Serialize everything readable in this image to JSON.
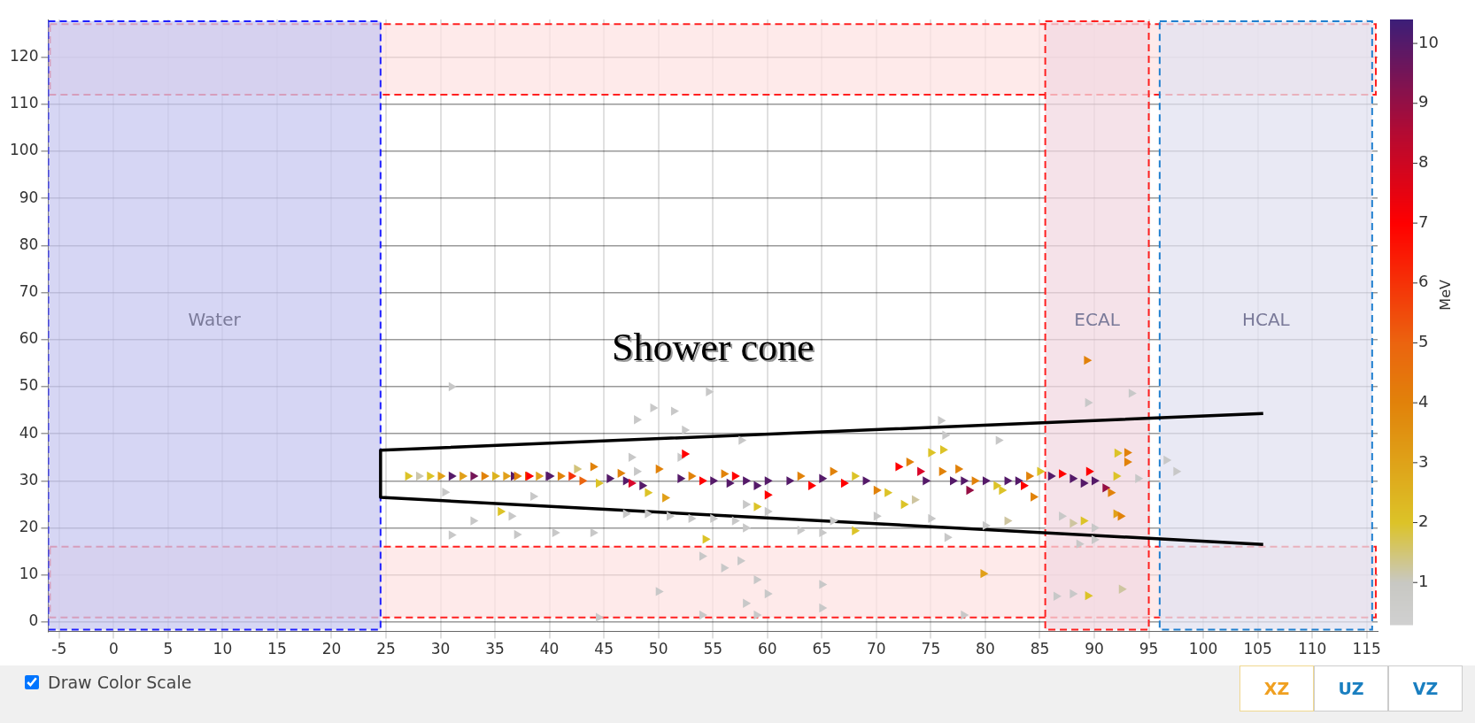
{
  "chart_data": {
    "type": "scatter",
    "clabel": "MeV",
    "clim": [
      0.3,
      10.4
    ],
    "cticks": [
      1,
      2,
      3,
      4,
      5,
      6,
      7,
      8,
      9,
      10
    ],
    "xlim": [
      -6,
      116
    ],
    "xticks": [
      -5,
      0,
      5,
      10,
      15,
      20,
      25,
      30,
      35,
      40,
      45,
      50,
      55,
      60,
      65,
      70,
      75,
      80,
      85,
      90,
      95,
      100,
      105,
      110,
      115
    ],
    "ylim": [
      -2,
      128
    ],
    "yticks": [
      0,
      10,
      20,
      30,
      40,
      50,
      60,
      70,
      80,
      90,
      100,
      110,
      120
    ],
    "grid": true,
    "legend": false,
    "bands": [
      {
        "axis": "y",
        "from": 112,
        "to": 127,
        "color": "#fde3e3"
      },
      {
        "axis": "y",
        "from": 1,
        "to": 16,
        "color": "#fde3e3"
      },
      {
        "axis": "x",
        "from": -6,
        "to": 24.5,
        "label": "Water",
        "color": "#c8c8f0"
      },
      {
        "axis": "x",
        "from": 85.5,
        "to": 95,
        "label": "ECAL",
        "color": "#f2d8e2"
      },
      {
        "axis": "x",
        "from": 96,
        "to": 115.5,
        "label": "HCAL",
        "color": "#e2e2f0"
      }
    ],
    "series": [
      {
        "marker": "triangle",
        "x": [
          27,
          28,
          29,
          30,
          31,
          32,
          33,
          34,
          35,
          36,
          36.7,
          37,
          38,
          38.1,
          39,
          39.9,
          40,
          41,
          42,
          42.5,
          43,
          44,
          44.5,
          45.5,
          46.5,
          47,
          47.5,
          48,
          48.5,
          49,
          50,
          50.6,
          52.4,
          52,
          53,
          54,
          55,
          56,
          56.5,
          57,
          58,
          59,
          60,
          58,
          59,
          60,
          62,
          63,
          64,
          65,
          66,
          67,
          68,
          69,
          70,
          71,
          72,
          73,
          74,
          74.5,
          75,
          76.1,
          76,
          77,
          77.5,
          78,
          78.5,
          79,
          80,
          81,
          81.5,
          82,
          83,
          83.5,
          84,
          84.4,
          85,
          86,
          87,
          88,
          89,
          89.5,
          90,
          91,
          91.5,
          92,
          93,
          93,
          94,
          92.1,
          89.3,
          93.4,
          89.4
        ],
        "values": [
          31,
          31,
          31,
          31,
          31,
          31,
          31,
          31,
          31,
          31,
          31,
          31,
          31,
          31,
          31,
          31,
          31,
          31,
          31,
          32.5,
          30,
          33,
          29.5,
          30.5,
          31.6,
          30,
          29.5,
          32,
          29,
          27.5,
          32.5,
          26.4,
          35.7,
          30.5,
          31,
          30,
          30,
          31.5,
          29.5,
          31,
          30,
          29,
          30,
          25,
          24.5,
          27,
          30,
          31,
          29,
          30.5,
          32,
          29.5,
          31,
          30,
          28,
          27.5,
          33,
          34,
          32,
          30,
          36,
          36.6,
          32,
          30,
          32.5,
          30,
          28,
          30,
          30,
          29,
          28,
          30,
          30,
          29,
          31,
          26.6,
          32,
          31,
          31.5,
          30.5,
          29.5,
          32,
          30,
          28.5,
          27.5,
          31,
          34,
          36,
          30.5,
          35.9,
          55.6,
          48.6,
          46.6
        ],
        "colors": [
          "#dcc328",
          "#ccc7ad",
          "#dcc328",
          "#e1a019",
          "#551a69",
          "#e1a019",
          "#741557",
          "#e1820a",
          "#dbb21f",
          "#e1a019",
          "#551a69",
          "#e1820a",
          "#eb640f",
          "#ff0000",
          "#e1a019",
          "#551a69",
          "#551a69",
          "#e1820a",
          "#f5320a",
          "#d2c37a",
          "#eb640f",
          "#e1820a",
          "#dcc328",
          "#551a69",
          "#e1820a",
          "#551a69",
          "#d9072b",
          "#c8c8c8",
          "#551a69",
          "#dcc328",
          "#e1820a",
          "#e1a019",
          "#ff0000",
          "#551a69",
          "#e1820a",
          "#ff0000",
          "#551a69",
          "#e1820a",
          "#551a69",
          "#ff0000",
          "#551a69",
          "#551a69",
          "#551a69",
          "#c8c8c8",
          "#dcc328",
          "#ff0000",
          "#551a69",
          "#e1820a",
          "#ff0000",
          "#551a69",
          "#e1820a",
          "#ff0000",
          "#dcc328",
          "#551a69",
          "#e1820a",
          "#dcc328",
          "#ff0000",
          "#e1820a",
          "#d9072b",
          "#551a69",
          "#dcc328",
          "#dcc328",
          "#e1820a",
          "#551a69",
          "#e1820a",
          "#551a69",
          "#950f44",
          "#e1820a",
          "#551a69",
          "#dcc328",
          "#dcc328",
          "#551a69",
          "#551a69",
          "#ff0000",
          "#e1820a",
          "#e1820a",
          "#dcc328",
          "#551a69",
          "#ff0000",
          "#551a69",
          "#551a69",
          "#ff0000",
          "#551a69",
          "#950f44",
          "#e1820a",
          "#dcc328",
          "#e1820a",
          "#e1820a",
          "#c8c8c8",
          "#dcc328",
          "#e1820a",
          "#c8c8c8",
          "#c8c8c8"
        ],
        "name": null
      },
      {
        "marker": "triangle",
        "x": [
          31,
          30.4,
          31,
          37,
          33,
          35.5,
          36.5,
          38.5,
          40.5,
          44,
          48,
          49.5,
          54.6,
          51.4,
          52.4,
          57.6,
          47,
          49,
          51,
          53,
          55,
          57,
          58,
          60,
          54.3,
          54,
          56,
          57.5,
          59,
          50,
          44.5,
          54,
          59,
          58,
          60,
          66,
          68,
          63,
          65,
          70,
          72.5,
          73.5,
          75,
          76.5,
          80,
          82,
          79.8,
          65,
          65,
          78,
          75.9,
          81.2,
          76.3,
          87,
          88,
          89,
          90,
          92,
          92.4,
          90,
          88.6,
          88,
          89.4,
          86.5,
          92.5,
          96.6,
          97.5,
          47.5,
          52
        ],
        "values": [
          50,
          27.6,
          18.5,
          18.6,
          21.5,
          23.5,
          22.5,
          26.7,
          19,
          19,
          43,
          45.5,
          48.9,
          44.8,
          40.8,
          38.6,
          23,
          23,
          22.5,
          22,
          22,
          21.5,
          20,
          23.5,
          17.6,
          14,
          11.5,
          13,
          9,
          6.5,
          1,
          1.5,
          1.5,
          4,
          6,
          21.5,
          19.4,
          19.5,
          19,
          22.5,
          25,
          26,
          22,
          18,
          20.5,
          21.5,
          10.3,
          8,
          3,
          1.5,
          42.8,
          38.6,
          39.7,
          22.5,
          21,
          21.5,
          20,
          23,
          22.5,
          17.5,
          16.6,
          6,
          5.6,
          5.5,
          7,
          34.4,
          32,
          35,
          35
        ],
        "colors": [
          "#c8c8c8",
          "#c8c8c8",
          "#c8c8c8",
          "#c8c8c8",
          "#c8c8c8",
          "#dcc328",
          "#c8c8c8",
          "#c8c8c8",
          "#c8c8c8",
          "#c8c8c8",
          "#c8c8c8",
          "#c8c8c8",
          "#c8c8c8",
          "#c8c8c8",
          "#c8c8c8",
          "#c8c8c8",
          "#c8c8c8",
          "#c8c8c8",
          "#c8c8c8",
          "#c8c8c8",
          "#c8c8c8",
          "#c8c8c8",
          "#c8c8c8",
          "#c8c8c8",
          "#dcc328",
          "#c8c8c8",
          "#c8c8c8",
          "#c8c8c8",
          "#c8c8c8",
          "#c8c8c8",
          "#c8c8c8",
          "#c8c8c8",
          "#c8c8c8",
          "#c8c8c8",
          "#c8c8c8",
          "#c8c8c8",
          "#dcc328",
          "#c8c8c8",
          "#c8c8c8",
          "#c8c8c8",
          "#dcc328",
          "#cec5a0",
          "#c8c8c8",
          "#c8c8c8",
          "#c8c8c8",
          "#cec5a0",
          "#e1a019",
          "#c8c8c8",
          "#c8c8c8",
          "#c8c8c8",
          "#c8c8c8",
          "#c8c8c8",
          "#c8c8c8",
          "#c8c8c8",
          "#cec5a0",
          "#dcc328",
          "#c8c8c8",
          "#e1a019",
          "#e1820a",
          "#c8c8c8",
          "#c8c8c8",
          "#c8c8c8",
          "#dcc328",
          "#c8c8c8",
          "#cec5a0",
          "#c8c8c8",
          "#c8c8c8",
          "#c8c8c8",
          "#c8c8c8"
        ]
      },
      {
        "type": "line",
        "marker": "none",
        "color": "#000000",
        "x": [
          105.5,
          24.5,
          24.5,
          105.5
        ],
        "values": [
          44.3,
          36.5,
          26.5,
          16.5
        ]
      }
    ],
    "annotations": [
      "Shower cone",
      "Draw Color Scale",
      "XZ",
      "UZ",
      "VZ"
    ]
  }
}
